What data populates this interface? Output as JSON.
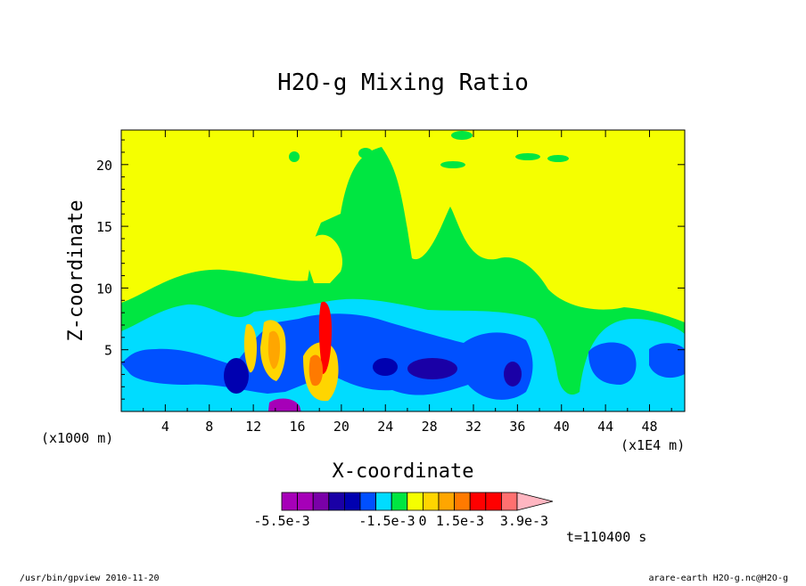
{
  "chart_data": {
    "type": "heatmap",
    "title": "H2O-g Mixing Ratio",
    "xlabel": "X-coordinate",
    "ylabel": "Z-coordinate",
    "x_unit_label": "(x1000 m)",
    "x_scale_label": "(x1E4 m)",
    "x_ticks": [
      "4",
      "8",
      "12",
      "16",
      "20",
      "24",
      "28",
      "32",
      "36",
      "40",
      "44",
      "48"
    ],
    "y_ticks": [
      "5",
      "10",
      "15",
      "20"
    ],
    "xlim": [
      0,
      51.2
    ],
    "ylim": [
      0,
      22.8
    ],
    "colorbar_labels": [
      "-5.5e-3",
      "-1.5e-3",
      "0",
      "1.5e-3",
      "3.9e-3"
    ],
    "colorbar_colors": [
      "#a600b8",
      "#a600b8",
      "#7a00a8",
      "#1a00a6",
      "#0000b0",
      "#0050ff",
      "#00dcff",
      "#00e641",
      "#f5ff00",
      "#ffd500",
      "#ffa600",
      "#ff7a00",
      "#ff0000",
      "#ff0000",
      "#ff7070",
      "#ffb6c1"
    ],
    "time_label": "t=110400 s",
    "grid": false
  },
  "footer": {
    "left": "/usr/bin/gpview  2010-11-20",
    "right": "arare-earth_H2O-g.nc@H2O-g"
  }
}
